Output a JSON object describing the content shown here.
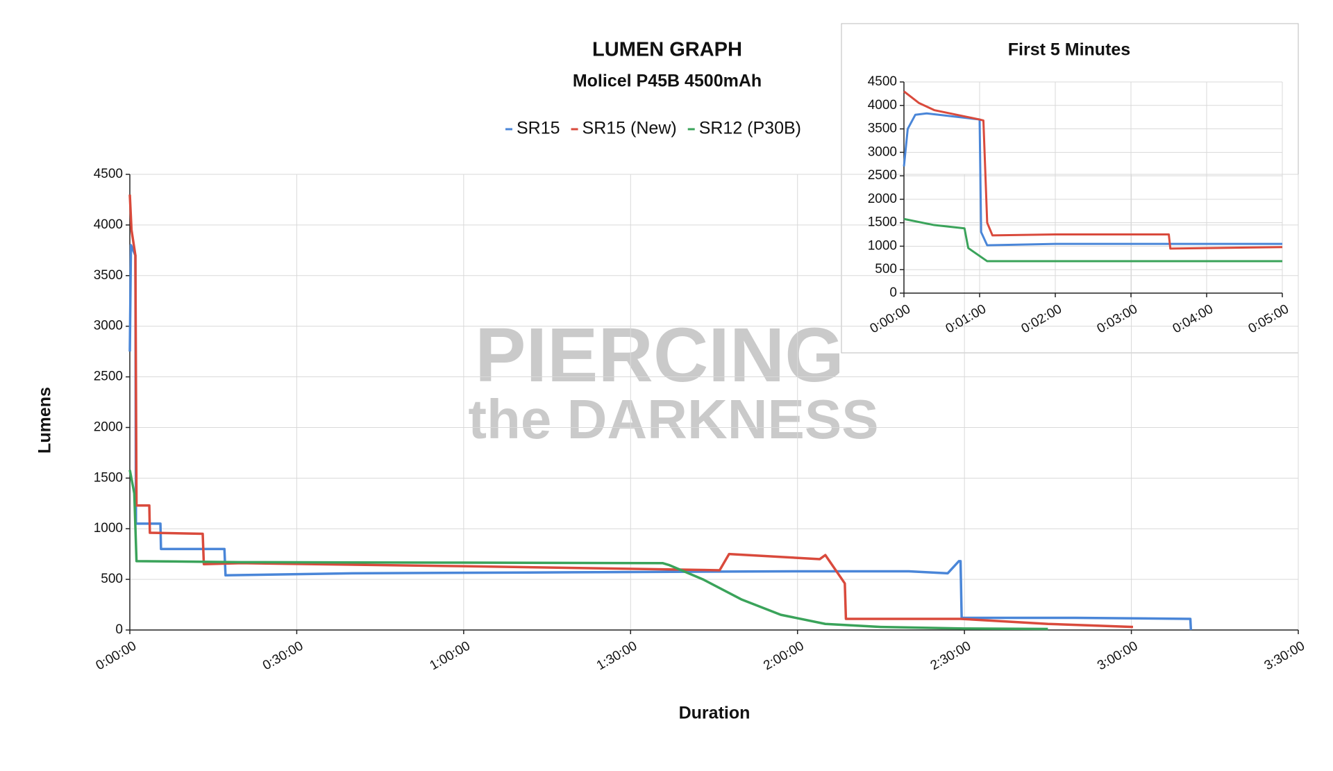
{
  "chart_data": [
    {
      "type": "line",
      "title": "LUMEN GRAPH",
      "subtitle": "Molicel P45B 4500mAh",
      "xlabel": "Duration",
      "ylabel": "Lumens",
      "watermark": [
        "PIERCING",
        "the DARKNESS"
      ],
      "grid": true,
      "legend": "top",
      "xlim": [
        0,
        210
      ],
      "ylim": [
        0,
        4500
      ],
      "xticks": [
        {
          "value": 0,
          "label": "0:00:00"
        },
        {
          "value": 30,
          "label": "0:30:00"
        },
        {
          "value": 60,
          "label": "1:00:00"
        },
        {
          "value": 90,
          "label": "1:30:00"
        },
        {
          "value": 120,
          "label": "2:00:00"
        },
        {
          "value": 150,
          "label": "2:30:00"
        },
        {
          "value": 180,
          "label": "3:00:00"
        },
        {
          "value": 210,
          "label": "3:30:00"
        }
      ],
      "yticks": [
        0,
        500,
        1000,
        1500,
        2000,
        2500,
        3000,
        3500,
        4000,
        4500
      ],
      "series": [
        {
          "name": "SR15",
          "color": "#4a86d8",
          "x": [
            0,
            0.2,
            1.0,
            1.1,
            5.5,
            5.6,
            17.0,
            17.2,
            40,
            80,
            120,
            140,
            147,
            149,
            149.3,
            149.5,
            170,
            190.6,
            190.7
          ],
          "values": [
            2750,
            3800,
            3700,
            1050,
            1050,
            800,
            800,
            540,
            560,
            570,
            580,
            580,
            560,
            680,
            680,
            120,
            120,
            110,
            0
          ]
        },
        {
          "name": "SR15 (New)",
          "color": "#d94a3c",
          "x": [
            0,
            0.3,
            1.0,
            1.2,
            3.5,
            3.6,
            13.1,
            13.3,
            20,
            60,
            106,
            107.7,
            124,
            125,
            128.5,
            128.7,
            149.3,
            165,
            180.3
          ],
          "values": [
            4300,
            3950,
            3700,
            1230,
            1230,
            960,
            950,
            650,
            660,
            630,
            590,
            750,
            700,
            740,
            460,
            110,
            110,
            60,
            30
          ]
        },
        {
          "name": "SR12 (P30B)",
          "color": "#3aa35a",
          "x": [
            0,
            0.8,
            1.2,
            20,
            60,
            95.8,
            97,
            103,
            110,
            117,
            125,
            135,
            150,
            165
          ],
          "values": [
            1580,
            1350,
            680,
            670,
            665,
            660,
            640,
            500,
            300,
            150,
            60,
            30,
            15,
            10
          ]
        }
      ]
    },
    {
      "type": "line",
      "title": "First 5 Minutes",
      "grid": true,
      "xlim": [
        0,
        5
      ],
      "ylim": [
        0,
        4500
      ],
      "xticks": [
        {
          "value": 0,
          "label": "0:00:00"
        },
        {
          "value": 1,
          "label": "0:01:00"
        },
        {
          "value": 2,
          "label": "0:02:00"
        },
        {
          "value": 3,
          "label": "0:03:00"
        },
        {
          "value": 4,
          "label": "0:04:00"
        },
        {
          "value": 5,
          "label": "0:05:00"
        }
      ],
      "yticks": [
        0,
        500,
        1000,
        1500,
        2000,
        2500,
        3000,
        3500,
        4000,
        4500
      ],
      "series": [
        {
          "color": "#4a86d8",
          "x": [
            0,
            0.05,
            0.15,
            0.3,
            1.0,
            1.02,
            1.1,
            2,
            5
          ],
          "values": [
            2700,
            3500,
            3800,
            3830,
            3700,
            1300,
            1020,
            1050,
            1050
          ]
        },
        {
          "color": "#d94a3c",
          "x": [
            0,
            0.2,
            0.4,
            1.0,
            1.05,
            1.1,
            1.17,
            2,
            3.5,
            3.52,
            5
          ],
          "values": [
            4300,
            4050,
            3900,
            3700,
            3680,
            1500,
            1230,
            1250,
            1250,
            950,
            980
          ]
        },
        {
          "color": "#3aa35a",
          "x": [
            0,
            0.4,
            0.8,
            0.85,
            1.1,
            5
          ],
          "values": [
            1580,
            1450,
            1380,
            960,
            680,
            680
          ]
        }
      ]
    }
  ]
}
